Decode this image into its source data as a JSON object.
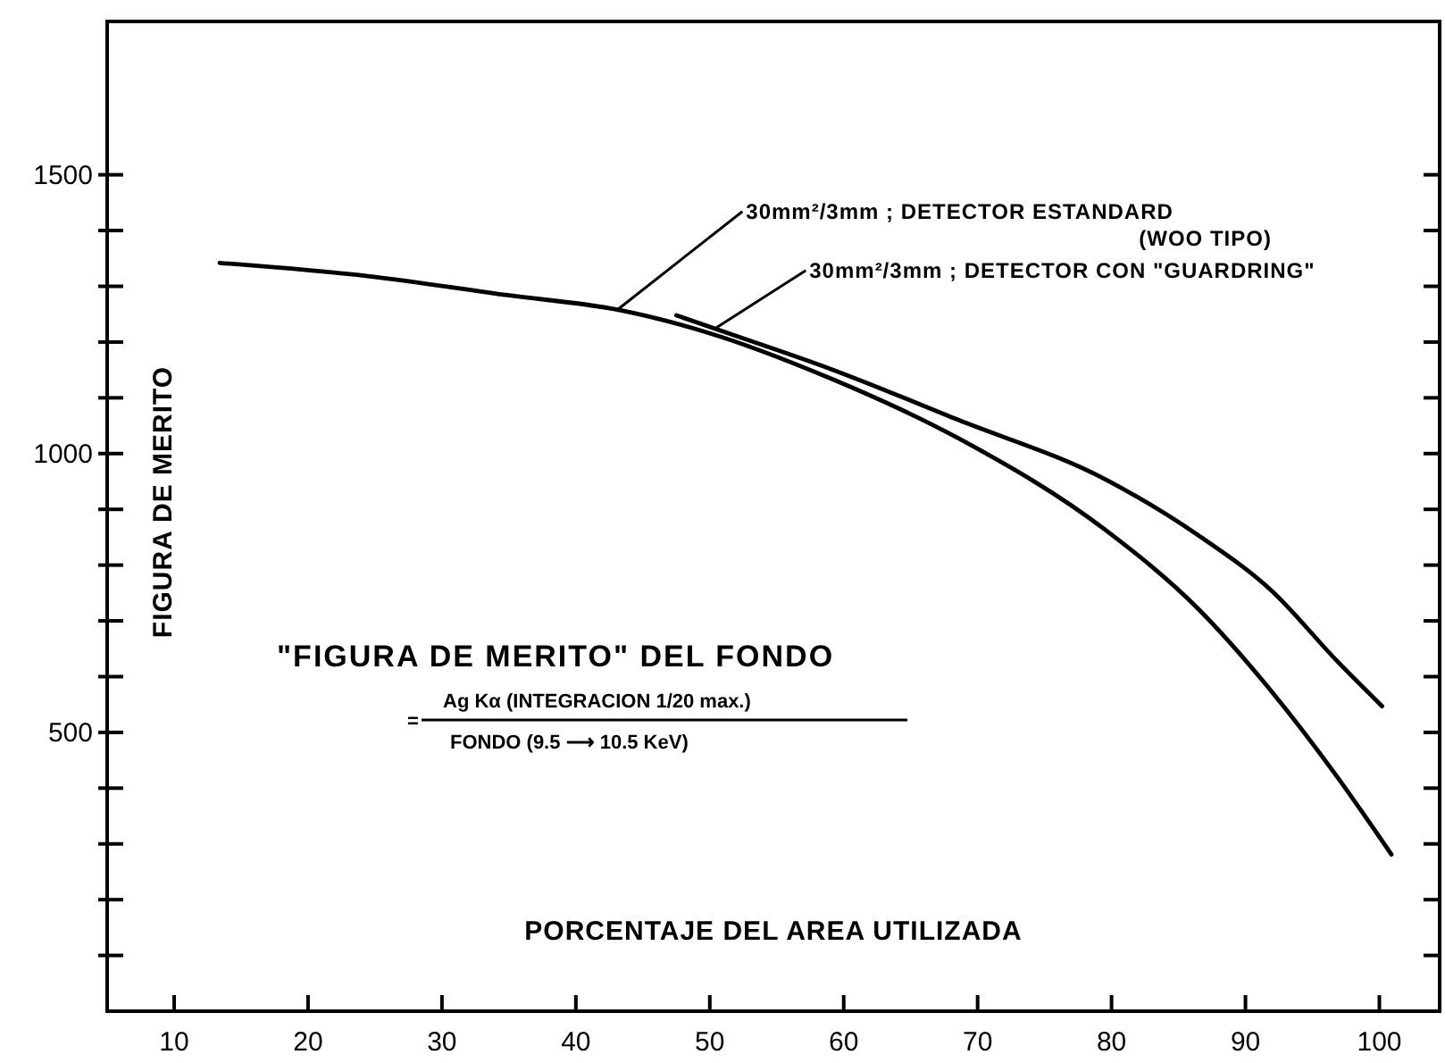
{
  "chart_data": {
    "type": "line",
    "xlabel": "PORCENTAJE DEL AREA UTILIZADA",
    "ylabel": "FIGURA DE MERITO",
    "xlim": [
      5,
      104.5
    ],
    "ylim": [
      0,
      1775
    ],
    "xticks": [
      10,
      20,
      30,
      40,
      50,
      60,
      70,
      80,
      90,
      100
    ],
    "yticks": [
      {
        "value": 100,
        "label": null
      },
      {
        "value": 200,
        "label": null
      },
      {
        "value": 300,
        "label": null
      },
      {
        "value": 400,
        "label": null
      },
      500,
      {
        "value": 600,
        "label": null
      },
      {
        "value": 700,
        "label": null
      },
      {
        "value": 800,
        "label": null
      },
      {
        "value": 900,
        "label": null
      },
      1000,
      {
        "value": 1100,
        "label": null
      },
      {
        "value": 1200,
        "label": null
      },
      {
        "value": 1300,
        "label": null
      },
      {
        "value": 1400,
        "label": null
      },
      1500
    ],
    "grid": false,
    "line_style": "solid",
    "series": [
      {
        "color": "#000000",
        "x": [
          13.4,
          24.6,
          34.9,
          43.1,
          49.7,
          59,
          68.6,
          79.6,
          86.5,
          92,
          96.8,
          100.9
        ],
        "values": [
          1342,
          1318,
          1284,
          1258,
          1218,
          1135,
          1027,
          862,
          721,
          572,
          422,
          281
        ]
      },
      {
        "color": "#000000",
        "x": [
          47.5,
          52.1,
          59,
          68.6,
          79.6,
          86.5,
          92,
          96.8,
          100.2
        ],
        "values": [
          1248,
          1210,
          1152,
          1060,
          953,
          853,
          753,
          629,
          547
        ]
      }
    ],
    "annotations": [
      {
        "text": "30mm²/3mm ; DETECTOR ESTANDARD (WOO TIPO)",
        "x": 43.1,
        "y": 1258
      },
      {
        "text": "30mm²/3mm ; DETECTOR CON \"GUARDRING\"",
        "x": 50.5,
        "y": 1226
      },
      "\"FIGURA DE MERITO\" DEL FONDO",
      "=",
      "Ag Kα (INTEGRACION 1/20 max.)",
      "FONDO (9.5 ⟶ 10.5 KeV)"
    ]
  }
}
